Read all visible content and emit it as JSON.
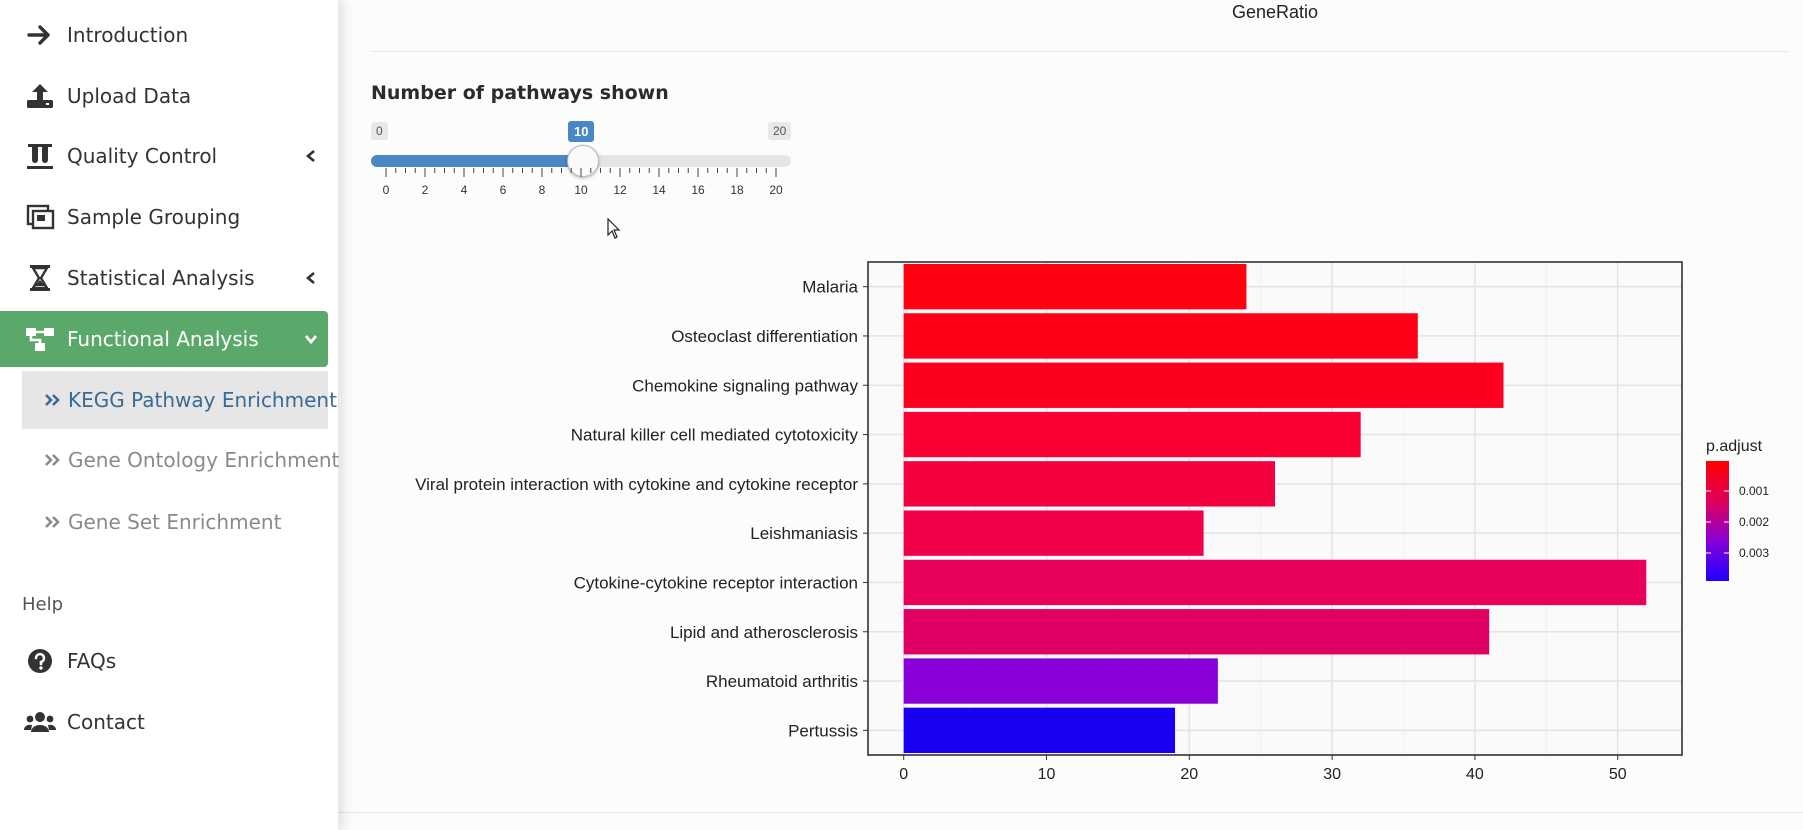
{
  "sidebar": {
    "items": [
      {
        "label": "Introduction",
        "icon": "arrow-right-icon"
      },
      {
        "label": "Upload Data",
        "icon": "upload-icon"
      },
      {
        "label": "Quality Control",
        "icon": "test-tubes-icon",
        "chevron": "chevron-left-icon"
      },
      {
        "label": "Sample Grouping",
        "icon": "grouping-icon"
      },
      {
        "label": "Statistical Analysis",
        "icon": "hourglass-icon",
        "chevron": "chevron-left-icon"
      },
      {
        "label": "Functional Analysis",
        "icon": "sitemap-icon",
        "chevron": "chevron-down-icon",
        "active": true
      }
    ],
    "sub_items": [
      {
        "label": "KEGG Pathway Enrichment",
        "active": true
      },
      {
        "label": "Gene Ontology Enrichment"
      },
      {
        "label": "Gene Set Enrichment"
      }
    ],
    "help_header": "Help",
    "help_items": [
      {
        "label": "FAQs",
        "icon": "question-circle-icon"
      },
      {
        "label": "Contact",
        "icon": "users-icon"
      }
    ]
  },
  "main": {
    "top_axis_label": "GeneRatio",
    "slider": {
      "title": "Number of pathways shown",
      "min": 0,
      "max": 20,
      "value": 10,
      "min_label": "0",
      "max_label": "20",
      "value_label": "10",
      "tick_labels": [
        "0",
        "2",
        "4",
        "6",
        "8",
        "10",
        "12",
        "14",
        "16",
        "18",
        "20"
      ]
    }
  },
  "chart_data": {
    "type": "bar",
    "orientation": "horizontal",
    "categories": [
      "Malaria",
      "Osteoclast differentiation",
      "Chemokine signaling pathway",
      "Natural killer cell mediated cytotoxicity",
      "Viral protein interaction with cytokine and cytokine receptor",
      "Leishmaniasis",
      "Cytokine-cytokine receptor interaction",
      "Lipid and atherosclerosis",
      "Rheumatoid arthritis",
      "Pertussis"
    ],
    "values": [
      24,
      36,
      42,
      32,
      26,
      21,
      52,
      41,
      22,
      19
    ],
    "colors": [
      "#ff0010",
      "#ff0018",
      "#fd0020",
      "#fa0032",
      "#f5003e",
      "#ef0048",
      "#e8005a",
      "#e00064",
      "#8a00d8",
      "#1a00f2"
    ],
    "xlim": [
      -2.5,
      54.5
    ],
    "xticks": [
      0,
      10,
      20,
      30,
      40,
      50
    ],
    "grid": true,
    "legend": {
      "title": "p.adjust",
      "position": "right",
      "ticks": [
        "0.001",
        "0.002",
        "0.003"
      ],
      "gradient": [
        "#ff0000",
        "#e0005a",
        "#8800d8",
        "#2000ff"
      ]
    }
  }
}
